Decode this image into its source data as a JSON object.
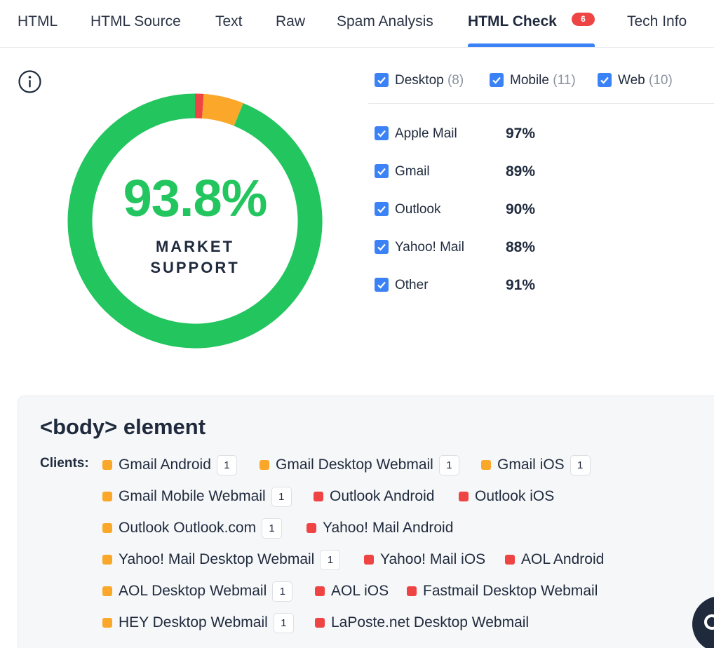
{
  "tabs": [
    {
      "label": "HTML"
    },
    {
      "label": "HTML Source"
    },
    {
      "label": "Text"
    },
    {
      "label": "Raw"
    },
    {
      "label": "Spam Analysis"
    },
    {
      "label": "HTML Check",
      "badge": "6",
      "active": true
    },
    {
      "label": "Tech Info"
    }
  ],
  "summary": {
    "percent": "93.8%",
    "label_line1": "MARKET",
    "label_line2": "SUPPORT",
    "donut_segments": [
      {
        "status": "supported",
        "fraction": 0.938,
        "color": "#22c55e"
      },
      {
        "status": "partial",
        "fraction": 0.051,
        "color": "#fba72a"
      },
      {
        "status": "unsupported",
        "fraction": 0.011,
        "color": "#ef4444"
      }
    ]
  },
  "filters": [
    {
      "label": "Desktop",
      "count": "(8)",
      "checked": true
    },
    {
      "label": "Mobile",
      "count": "(11)",
      "checked": true
    },
    {
      "label": "Web",
      "count": "(10)",
      "checked": true
    }
  ],
  "client_scores": [
    {
      "name": "Apple Mail",
      "percent": "97%"
    },
    {
      "name": "Gmail",
      "percent": "89%"
    },
    {
      "name": "Outlook",
      "percent": "90%"
    },
    {
      "name": "Yahoo! Mail",
      "percent": "88%"
    },
    {
      "name": "Other",
      "percent": "91%"
    }
  ],
  "colors": {
    "partial": "#fba72a",
    "unsupported": "#ef4444",
    "accent": "#3b82f6"
  },
  "element_card": {
    "title": "<body> element",
    "clients_label": "Clients:",
    "clients": [
      {
        "name": "Gmail Android",
        "status": "partial",
        "count": "1"
      },
      {
        "name": "Gmail Desktop Webmail",
        "status": "partial",
        "count": "1"
      },
      {
        "name": "Gmail iOS",
        "status": "partial",
        "count": "1"
      },
      {
        "name": "Gmail Mobile Webmail",
        "status": "partial",
        "count": "1"
      },
      {
        "name": "Outlook Android",
        "status": "unsupported"
      },
      {
        "name": "Outlook iOS",
        "status": "unsupported"
      },
      {
        "name": "Outlook Outlook.com",
        "status": "partial",
        "count": "1"
      },
      {
        "name": "Yahoo! Mail Android",
        "status": "unsupported"
      },
      {
        "name": "Yahoo! Mail Desktop Webmail",
        "status": "partial",
        "count": "1"
      },
      {
        "name": "Yahoo! Mail iOS",
        "status": "unsupported"
      },
      {
        "name": "AOL Android",
        "status": "unsupported"
      },
      {
        "name": "AOL Desktop Webmail",
        "status": "partial",
        "count": "1"
      },
      {
        "name": "AOL iOS",
        "status": "unsupported"
      },
      {
        "name": "Fastmail Desktop Webmail",
        "status": "unsupported"
      },
      {
        "name": "HEY Desktop Webmail",
        "status": "partial",
        "count": "1"
      },
      {
        "name": "LaPoste.net Desktop Webmail",
        "status": "unsupported"
      }
    ]
  }
}
